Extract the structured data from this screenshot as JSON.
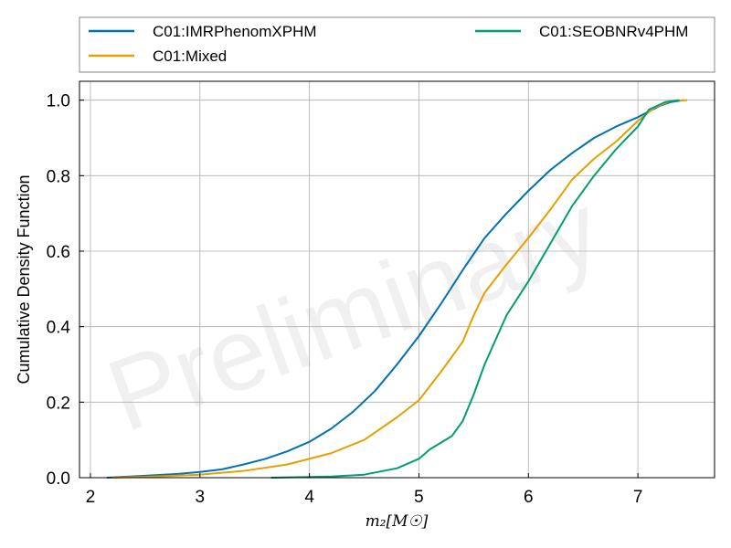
{
  "chart_data": {
    "type": "line",
    "title": "",
    "xlabel": "m₂[M☉]",
    "ylabel": "Cumulative Density Function",
    "xlim": [
      1.9,
      7.7
    ],
    "ylim": [
      0,
      1.05
    ],
    "xticks": [
      2,
      3,
      4,
      5,
      6,
      7
    ],
    "xtick_labels": [
      "2",
      "3",
      "4",
      "5",
      "6",
      "7"
    ],
    "yticks": [
      0,
      0.2,
      0.4,
      0.6,
      0.8,
      1.0
    ],
    "ytick_labels": [
      "0.0",
      "0.2",
      "0.4",
      "0.6",
      "0.8",
      "1.0"
    ],
    "grid": true,
    "legend_position": "top-outside",
    "watermark": "Preliminary",
    "series": [
      {
        "name": "C01:IMRPhenomXPHM",
        "color": "#0072b2",
        "x": [
          2.15,
          2.5,
          2.8,
          3.0,
          3.2,
          3.4,
          3.6,
          3.8,
          4.0,
          4.2,
          4.4,
          4.6,
          4.8,
          5.0,
          5.2,
          5.4,
          5.6,
          5.8,
          6.0,
          6.2,
          6.4,
          6.6,
          6.8,
          7.0,
          7.2,
          7.3,
          7.42
        ],
        "y": [
          0.0,
          0.005,
          0.01,
          0.015,
          0.022,
          0.035,
          0.05,
          0.07,
          0.095,
          0.13,
          0.175,
          0.23,
          0.3,
          0.375,
          0.46,
          0.55,
          0.635,
          0.7,
          0.76,
          0.815,
          0.86,
          0.9,
          0.93,
          0.955,
          0.985,
          0.995,
          1.0
        ]
      },
      {
        "name": "C01:Mixed",
        "color": "#e69f00",
        "x": [
          2.2,
          2.5,
          3.0,
          3.4,
          3.8,
          4.2,
          4.5,
          4.8,
          5.0,
          5.2,
          5.4,
          5.5,
          5.6,
          5.8,
          6.0,
          6.2,
          6.4,
          6.6,
          6.8,
          7.0,
          7.15,
          7.3,
          7.45
        ],
        "y": [
          0.0,
          0.002,
          0.008,
          0.018,
          0.035,
          0.065,
          0.1,
          0.16,
          0.205,
          0.28,
          0.36,
          0.43,
          0.49,
          0.565,
          0.635,
          0.71,
          0.79,
          0.845,
          0.89,
          0.945,
          0.98,
          0.998,
          1.0
        ]
      },
      {
        "name": "C01:SEOBNRv4PHM",
        "color": "#009e73",
        "x": [
          3.65,
          4.2,
          4.5,
          4.8,
          5.0,
          5.1,
          5.3,
          5.4,
          5.5,
          5.6,
          5.8,
          6.0,
          6.2,
          6.4,
          6.6,
          6.8,
          7.0,
          7.1,
          7.25,
          7.38
        ],
        "y": [
          0.0,
          0.003,
          0.008,
          0.025,
          0.05,
          0.075,
          0.11,
          0.15,
          0.22,
          0.3,
          0.43,
          0.52,
          0.62,
          0.72,
          0.8,
          0.87,
          0.93,
          0.975,
          0.995,
          1.0
        ]
      }
    ]
  }
}
